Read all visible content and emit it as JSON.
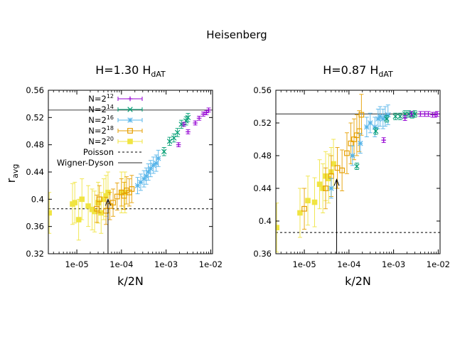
{
  "title": "Heisenberg",
  "colors": {
    "N2^12": "#9400d3",
    "N2^14": "#009e73",
    "N2^16": "#56b4e9",
    "N2^18": "#e69f00",
    "N2^20": "#f0e442",
    "reference": "#000000"
  },
  "legend": {
    "items": [
      {
        "key": "N2^12",
        "base": "N=2",
        "exp": "12",
        "marker": "plus"
      },
      {
        "key": "N2^14",
        "base": "N=2",
        "exp": "14",
        "marker": "cross"
      },
      {
        "key": "N2^16",
        "base": "N=2",
        "exp": "16",
        "marker": "star"
      },
      {
        "key": "N2^18",
        "base": "N=2",
        "exp": "18",
        "marker": "open-square"
      },
      {
        "key": "N2^20",
        "base": "N=2",
        "exp": "20",
        "marker": "filled-square"
      }
    ],
    "poisson_label": "Poisson",
    "wd_label": "Wigner-Dyson"
  },
  "chart_data": [
    {
      "type": "scatter",
      "title_main": "H=1.30 H",
      "title_sub": "dAT",
      "xlabel": "k/2N",
      "ylabel_main": "r",
      "ylabel_sub": "avg",
      "xscale": "log",
      "xlim": [
        2.3e-06,
        0.011
      ],
      "ylim": [
        0.32,
        0.56
      ],
      "xticks": [
        1e-05,
        0.0001,
        0.001,
        0.01
      ],
      "xtick_labels": [
        "1e-05",
        "1e-04",
        "1e-03",
        "1e-02"
      ],
      "yticks": [
        0.32,
        0.36,
        0.4,
        0.44,
        0.48,
        0.52,
        0.56
      ],
      "ytick_labels": [
        "0.32",
        "0.36",
        "0.4",
        "0.44",
        "0.48",
        "0.52",
        "0.56"
      ],
      "poisson": 0.386,
      "wigner_dyson": 0.531,
      "arrow_x": 5e-05,
      "arrow_y_tip": 0.4,
      "series": [
        {
          "key": "N2^12",
          "x": [
            0.0019,
            0.0025,
            0.0031,
            0.0045,
            0.0055,
            0.0068,
            0.008,
            0.009
          ],
          "y": [
            0.48,
            0.51,
            0.499,
            0.512,
            0.519,
            0.525,
            0.527,
            0.531
          ],
          "err": [
            0.003,
            0.003,
            0.003,
            0.003,
            0.003,
            0.003,
            0.003,
            0.003
          ]
        },
        {
          "key": "N2^14",
          "x": [
            0.0009,
            0.0012,
            0.0015,
            0.0018,
            0.0022,
            0.0028,
            0.0031
          ],
          "y": [
            0.47,
            0.485,
            0.49,
            0.498,
            0.51,
            0.515,
            0.52
          ],
          "err": [
            0.006,
            0.006,
            0.006,
            0.006,
            0.006,
            0.006,
            0.006
          ]
        },
        {
          "key": "N2^16",
          "x": [
            0.00023,
            0.00027,
            0.00032,
            0.00036,
            0.0004,
            0.00045,
            0.00052,
            0.0006,
            0.00067
          ],
          "y": [
            0.42,
            0.425,
            0.43,
            0.434,
            0.44,
            0.445,
            0.45,
            0.453,
            0.46
          ],
          "err": [
            0.012,
            0.012,
            0.012,
            0.012,
            0.012,
            0.012,
            0.012,
            0.012,
            0.012
          ]
        },
        {
          "key": "N2^18",
          "x": [
            2.8e-05,
            3.2e-05,
            4.5e-05,
            5.5e-05,
            6.5e-05,
            8e-05,
            0.0001,
            0.000115,
            0.00013,
            0.00015,
            0.00017
          ],
          "y": [
            0.386,
            0.4,
            0.383,
            0.39,
            0.395,
            0.404,
            0.41,
            0.405,
            0.413,
            0.41,
            0.415
          ],
          "err": [
            0.02,
            0.02,
            0.02,
            0.02,
            0.02,
            0.02,
            0.02,
            0.02,
            0.02,
            0.02,
            0.02
          ]
        },
        {
          "key": "N2^20",
          "x": [
            2.4e-06,
            8e-06,
            9e-06,
            1.1e-05,
            1.3e-05,
            1.8e-05,
            2.2e-05,
            2.5e-05,
            3e-05,
            3.5e-05,
            4e-05,
            4.5e-05,
            5e-05,
            0.0001,
            0.00012
          ],
          "y": [
            0.38,
            0.393,
            0.395,
            0.37,
            0.4,
            0.39,
            0.385,
            0.382,
            0.395,
            0.38,
            0.4,
            0.405,
            0.41,
            0.41,
            0.41
          ],
          "err": [
            0.03,
            0.03,
            0.03,
            0.03,
            0.03,
            0.03,
            0.03,
            0.03,
            0.03,
            0.03,
            0.03,
            0.03,
            0.03,
            0.03,
            0.03
          ]
        }
      ]
    },
    {
      "type": "scatter",
      "title_main": "H=0.87 H",
      "title_sub": "dAT",
      "xlabel": "k/2N",
      "ylabel_main": "",
      "ylabel_sub": "",
      "xscale": "log",
      "xlim": [
        2.3e-06,
        0.011
      ],
      "ylim": [
        0.36,
        0.56
      ],
      "xticks": [
        1e-05,
        0.0001,
        0.001,
        0.01
      ],
      "xtick_labels": [
        "1e-05",
        "1e-04",
        "1e-03",
        "1e-02"
      ],
      "yticks": [
        0.36,
        0.4,
        0.44,
        0.48,
        0.52,
        0.56
      ],
      "ytick_labels": [
        "0.36",
        "0.4",
        "0.44",
        "0.48",
        "0.52",
        "0.56"
      ],
      "poisson": 0.386,
      "wigner_dyson": 0.531,
      "arrow_x": 5.3e-05,
      "arrow_y_tip": 0.451,
      "series": [
        {
          "key": "N2^12",
          "x": [
            0.0006,
            0.0018,
            0.0025,
            0.004,
            0.005,
            0.006,
            0.0075,
            0.0085,
            0.0095
          ],
          "y": [
            0.499,
            0.526,
            0.531,
            0.531,
            0.531,
            0.531,
            0.53,
            0.53,
            0.531
          ],
          "err": [
            0.003,
            0.003,
            0.003,
            0.003,
            0.003,
            0.003,
            0.003,
            0.003,
            0.003
          ]
        },
        {
          "key": "N2^14",
          "x": [
            0.00015,
            0.0004,
            0.0007,
            0.0011,
            0.0014,
            0.0018,
            0.0022,
            0.0026,
            0.003
          ],
          "y": [
            0.467,
            0.51,
            0.525,
            0.528,
            0.528,
            0.531,
            0.531,
            0.53,
            0.531
          ],
          "err": [
            0.004,
            0.004,
            0.004,
            0.004,
            0.004,
            0.004,
            0.004,
            0.004,
            0.004
          ]
        },
        {
          "key": "N2^16",
          "x": [
            4e-05,
            0.00012,
            0.00018,
            0.00025,
            0.0003,
            0.00038,
            0.00045,
            0.0005,
            0.00058,
            0.00065,
            0.00075
          ],
          "y": [
            0.44,
            0.48,
            0.495,
            0.515,
            0.52,
            0.515,
            0.525,
            0.528,
            0.525,
            0.528,
            0.53
          ],
          "err": [
            0.012,
            0.012,
            0.012,
            0.012,
            0.012,
            0.012,
            0.012,
            0.012,
            0.012,
            0.012,
            0.012
          ]
        },
        {
          "key": "N2^18",
          "x": [
            1e-05,
            3e-05,
            4e-05,
            5.5e-05,
            7e-05,
            9e-05,
            0.00011,
            0.00013,
            0.00015,
            0.00017,
            0.00019
          ],
          "y": [
            0.415,
            0.44,
            0.455,
            0.465,
            0.462,
            0.483,
            0.495,
            0.5,
            0.505,
            0.51,
            0.53
          ],
          "err": [
            0.025,
            0.025,
            0.025,
            0.025,
            0.025,
            0.025,
            0.025,
            0.025,
            0.025,
            0.025,
            0.025
          ]
        },
        {
          "key": "N2^20",
          "x": [
            2.4e-06,
            8e-06,
            1.2e-05,
            1.7e-05,
            2.2e-05,
            2.6e-05,
            3e-05,
            3.5e-05,
            4e-05,
            4.5e-05
          ],
          "y": [
            0.392,
            0.41,
            0.425,
            0.423,
            0.445,
            0.44,
            0.455,
            0.452,
            0.46,
            0.47
          ],
          "err": [
            0.03,
            0.03,
            0.03,
            0.03,
            0.03,
            0.03,
            0.03,
            0.03,
            0.03,
            0.03
          ]
        }
      ]
    }
  ]
}
